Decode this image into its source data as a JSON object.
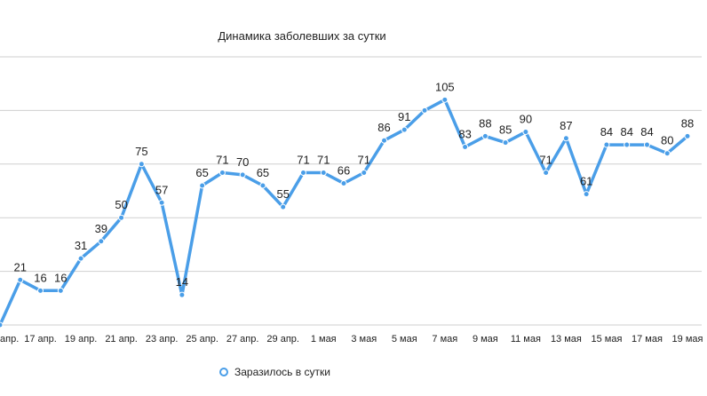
{
  "chart_data": {
    "type": "line",
    "title": "Динамика заболевших за сутки",
    "xlabel": "",
    "ylabel": "",
    "ylim": [
      0,
      125
    ],
    "grid": "horizontal",
    "legend_position": "bottom",
    "x_tick_labels": [
      "апр.",
      "17 апр.",
      "19 апр.",
      "21 апр.",
      "23 апр.",
      "25 апр.",
      "27 апр.",
      "29 апр.",
      "1 мая",
      "3 мая",
      "5 мая",
      "7 мая",
      "9 мая",
      "11 мая",
      "13 мая",
      "15 мая",
      "17 мая",
      "19 мая"
    ],
    "series": [
      {
        "name": "Заразилось в сутки",
        "color": "#4a9ee8",
        "values": [
          0,
          21,
          16,
          16,
          31,
          39,
          50,
          75,
          57,
          14,
          65,
          71,
          70,
          65,
          55,
          71,
          71,
          66,
          71,
          86,
          91,
          100,
          105,
          83,
          88,
          85,
          90,
          71,
          87,
          61,
          84,
          84,
          84,
          80,
          88
        ],
        "labels": [
          "",
          "21",
          "16",
          "16",
          "31",
          "39",
          "50",
          "75",
          "57",
          "14",
          "65",
          "71",
          "70",
          "65",
          "55",
          "71",
          "71",
          "66",
          "71",
          "86",
          "91",
          "",
          "105",
          "83",
          "88",
          "85",
          "90",
          "71",
          "87",
          "61",
          "84",
          "84",
          "84",
          "80",
          "88"
        ]
      }
    ]
  }
}
